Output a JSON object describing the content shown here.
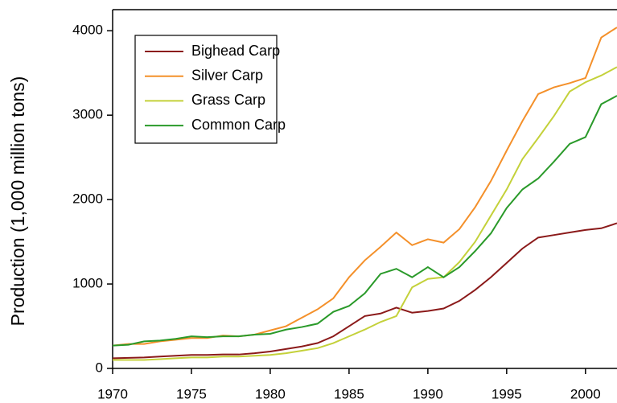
{
  "chart_data": {
    "type": "line",
    "ylabel": "Production (1,000 million tons)",
    "x": [
      1970,
      1971,
      1972,
      1973,
      1974,
      1975,
      1976,
      1977,
      1978,
      1979,
      1980,
      1981,
      1982,
      1983,
      1984,
      1985,
      1986,
      1987,
      1988,
      1989,
      1990,
      1991,
      1992,
      1993,
      1994,
      1995,
      1996,
      1997,
      1998,
      1999,
      2000,
      2001,
      2002
    ],
    "series": [
      {
        "name": "Bighead Carp",
        "color": "#8b1a1a",
        "values": [
          120,
          125,
          130,
          140,
          150,
          160,
          160,
          165,
          165,
          180,
          200,
          230,
          260,
          300,
          380,
          500,
          620,
          650,
          720,
          660,
          680,
          710,
          800,
          930,
          1080,
          1250,
          1420,
          1550,
          1580,
          1610,
          1640,
          1660,
          1720
        ]
      },
      {
        "name": "Silver Carp",
        "color": "#f4902a",
        "values": [
          270,
          290,
          290,
          320,
          340,
          360,
          360,
          390,
          380,
          400,
          450,
          500,
          600,
          700,
          830,
          1080,
          1280,
          1440,
          1610,
          1460,
          1530,
          1490,
          1650,
          1910,
          2220,
          2580,
          2930,
          3250,
          3330,
          3380,
          3440,
          3920,
          4040
        ]
      },
      {
        "name": "Grass Carp",
        "color": "#c4d13a",
        "values": [
          100,
          100,
          100,
          110,
          120,
          130,
          130,
          140,
          140,
          150,
          160,
          180,
          210,
          240,
          300,
          380,
          460,
          550,
          620,
          960,
          1060,
          1080,
          1260,
          1500,
          1810,
          2120,
          2480,
          2730,
          2990,
          3280,
          3390,
          3470,
          3570
        ]
      },
      {
        "name": "Common Carp",
        "color": "#2a9a2a",
        "values": [
          270,
          280,
          320,
          330,
          350,
          380,
          370,
          380,
          380,
          400,
          410,
          460,
          490,
          530,
          670,
          740,
          890,
          1120,
          1180,
          1080,
          1200,
          1080,
          1200,
          1390,
          1600,
          1900,
          2120,
          2250,
          2450,
          2660,
          2740,
          3130,
          3230
        ]
      }
    ],
    "xlim": [
      1970,
      2002
    ],
    "xticks": [
      1970,
      1975,
      1980,
      1985,
      1990,
      1995,
      2000
    ],
    "ylim": [
      0,
      4250
    ],
    "yticks": [
      0,
      1000,
      2000,
      3000,
      4000
    ],
    "legend": "upper left"
  }
}
